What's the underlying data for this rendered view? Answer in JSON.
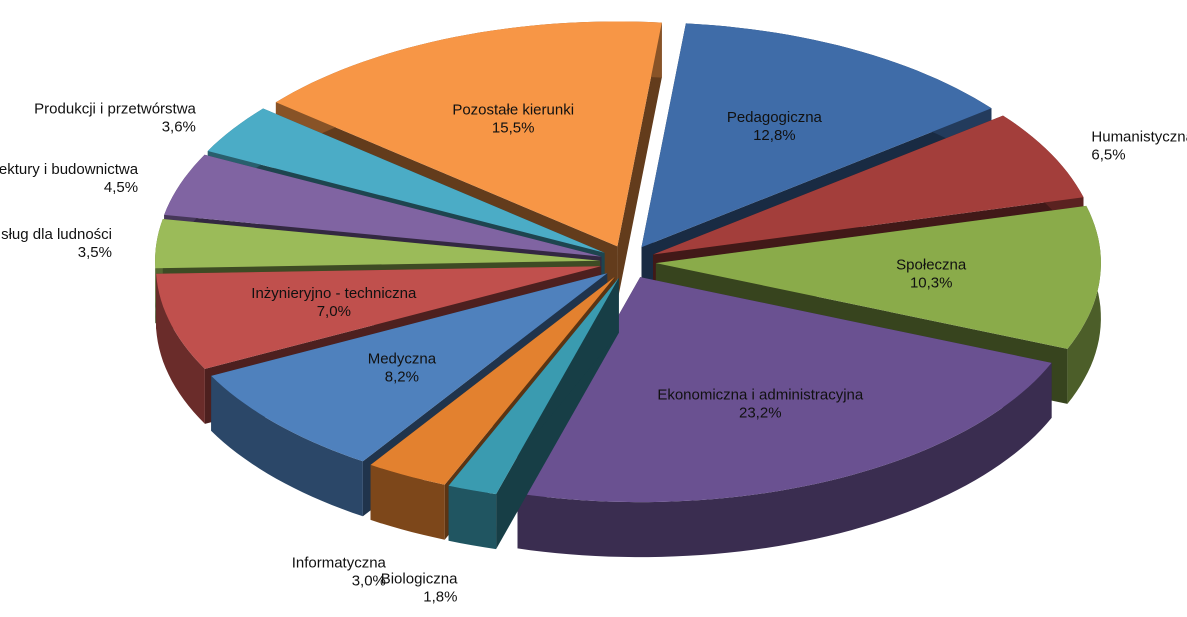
{
  "chart_data": {
    "type": "pie3d",
    "categories": [
      "Pedagogiczna",
      "Humanistyczna",
      "Społeczna",
      "Ekonomiczna i administracyjna",
      "Biologiczna",
      "Informatyczna",
      "Medyczna",
      "Inżynieryjno - techniczna",
      "Usług dla ludności",
      "Architektury i budownictwa",
      "Produkcji i przetwórstwa",
      "Pozostałe kierunki"
    ],
    "values": [
      12.8,
      6.5,
      10.3,
      23.2,
      1.8,
      3.0,
      8.2,
      7.0,
      3.5,
      4.5,
      3.6,
      15.5
    ],
    "value_labels": [
      "12,8%",
      "6,5%",
      "10,3%",
      "23,2%",
      "1,8%",
      "3,0%",
      "8,2%",
      "7,0%",
      "3,5%",
      "4,5%",
      "3,6%",
      "15,5%"
    ],
    "colors": [
      "#3f6ca8",
      "#a33e3b",
      "#8aab4a",
      "#6a5191",
      "#3a9bb0",
      "#e3812f",
      "#4f81bd",
      "#c0504d",
      "#9bbb59",
      "#8064a2",
      "#4bacc6",
      "#f79646"
    ]
  }
}
